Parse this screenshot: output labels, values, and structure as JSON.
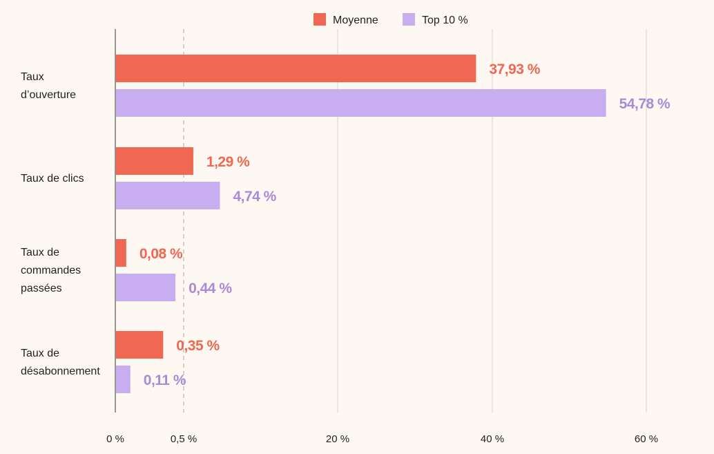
{
  "chart_data": {
    "type": "bar",
    "orientation": "horizontal",
    "legend_position": "top",
    "grid": true,
    "colors": {
      "Moyenne": "#f06753",
      "Top 10 %": "#c8aef0",
      "label_Moyenne": "#f06753",
      "label_Top": "#a98ad8"
    },
    "categories": [
      [
        "Taux",
        "d’ouverture"
      ],
      [
        "Taux de clics"
      ],
      [
        "Taux de",
        "commandes",
        "passées"
      ],
      [
        "Taux de",
        "désabonnement"
      ]
    ],
    "series": [
      {
        "name": "Moyenne",
        "values": [
          37.93,
          1.29,
          0.08,
          0.35
        ],
        "labels": [
          "37,93 %",
          "1,29 %",
          "0,08 %",
          "0,35 %"
        ]
      },
      {
        "name": "Top 10 %",
        "values": [
          54.78,
          4.74,
          0.44,
          0.11
        ],
        "labels": [
          "54,78 %",
          "4,74 %",
          "0,44 %",
          "0,11 %"
        ]
      }
    ],
    "x_ticks": [
      {
        "label": "0 %"
      },
      {
        "label": "0,5 %"
      },
      {
        "label": "20 %"
      },
      {
        "label": "40 %"
      },
      {
        "label": "60 %"
      }
    ],
    "xlabel": "",
    "ylabel": ""
  }
}
